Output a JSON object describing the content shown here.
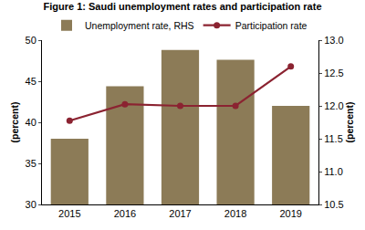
{
  "chart_data": {
    "type": "bar",
    "title": "Figure 1: Saudi unemployment rates and participation rate",
    "categories": [
      "2015",
      "2016",
      "2017",
      "2018",
      "2019"
    ],
    "series": [
      {
        "name": "Unemployment rate, RHS",
        "type": "bar",
        "axis": "y2",
        "color": "#8c7b57",
        "values": [
          11.5,
          12.3,
          12.85,
          12.7,
          12.0
        ]
      },
      {
        "name": "Participation rate",
        "type": "line",
        "color": "#8b2331",
        "marker": "circle",
        "values": [
          40.2,
          42.2,
          42.0,
          42.0,
          46.8
        ]
      }
    ],
    "ylabel": "(percent)",
    "y2label": "(percent)",
    "ylim": [
      30,
      50
    ],
    "yticks": [
      30,
      35,
      40,
      45,
      50
    ],
    "y2lim": [
      10.5,
      13.0
    ],
    "y2ticks": [
      {
        "value": 10.5,
        "label": "10.5"
      },
      {
        "value": 11,
        "label": "11.0"
      },
      {
        "value": 11.5,
        "label": "11.5"
      },
      {
        "value": 12,
        "label": "12.0"
      },
      {
        "value": 12.5,
        "label": "12.5"
      },
      {
        "value": 13,
        "label": "13.0"
      }
    ],
    "grid": false,
    "legend": "top"
  }
}
